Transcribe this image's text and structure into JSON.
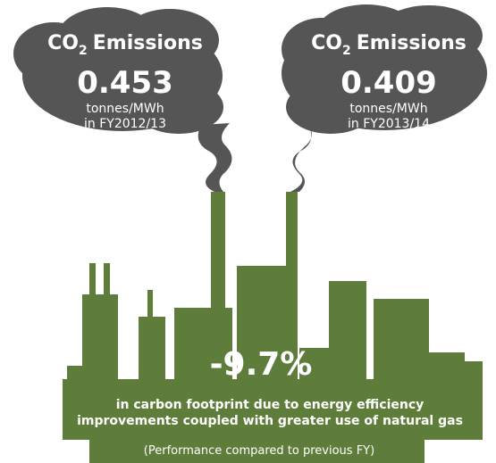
{
  "clouds": [
    {
      "label_main": "CO",
      "label_sub": "2",
      "label_rest": "Emissions",
      "value": "0.453",
      "unit": "tonnes/MWh",
      "period": "in FY2012/13"
    },
    {
      "label_main": "CO",
      "label_sub": "2",
      "label_rest": "Emissions",
      "value": "0.409",
      "unit": "tonnes/MWh",
      "period": "in FY2013/14"
    }
  ],
  "change": {
    "value": "-9.7%",
    "lines": [
      "in carbon footprint due to energy efficiency",
      "improvements coupled with greater use of natural gas"
    ],
    "note": "(Performance compared to previous FY)"
  }
}
